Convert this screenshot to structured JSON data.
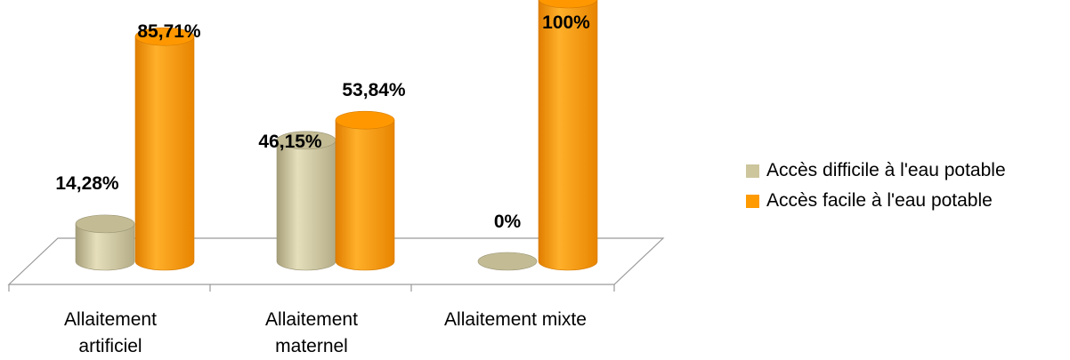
{
  "chart_data": {
    "type": "bar",
    "title": "",
    "xlabel": "",
    "ylabel": "",
    "ylim": [
      0,
      100
    ],
    "categories": [
      [
        "Allaitement",
        "artificiel"
      ],
      [
        "Allaitement",
        "maternel"
      ],
      [
        "Allaitement mixte"
      ]
    ],
    "series": [
      {
        "name": "Accès difficile à l'eau potable",
        "color": "#cdc59c",
        "values": [
          14.28,
          46.15,
          0
        ],
        "labels": [
          "14,28%",
          "46,15%",
          "0%"
        ]
      },
      {
        "name": "Accès facile à l'eau potable",
        "color": "#ff9a00",
        "values": [
          85.71,
          53.84,
          100
        ],
        "labels": [
          "85,71%",
          "53,84%",
          "100%"
        ]
      }
    ],
    "legend_position": "right",
    "grid": false,
    "style": "3d-cylinder"
  }
}
